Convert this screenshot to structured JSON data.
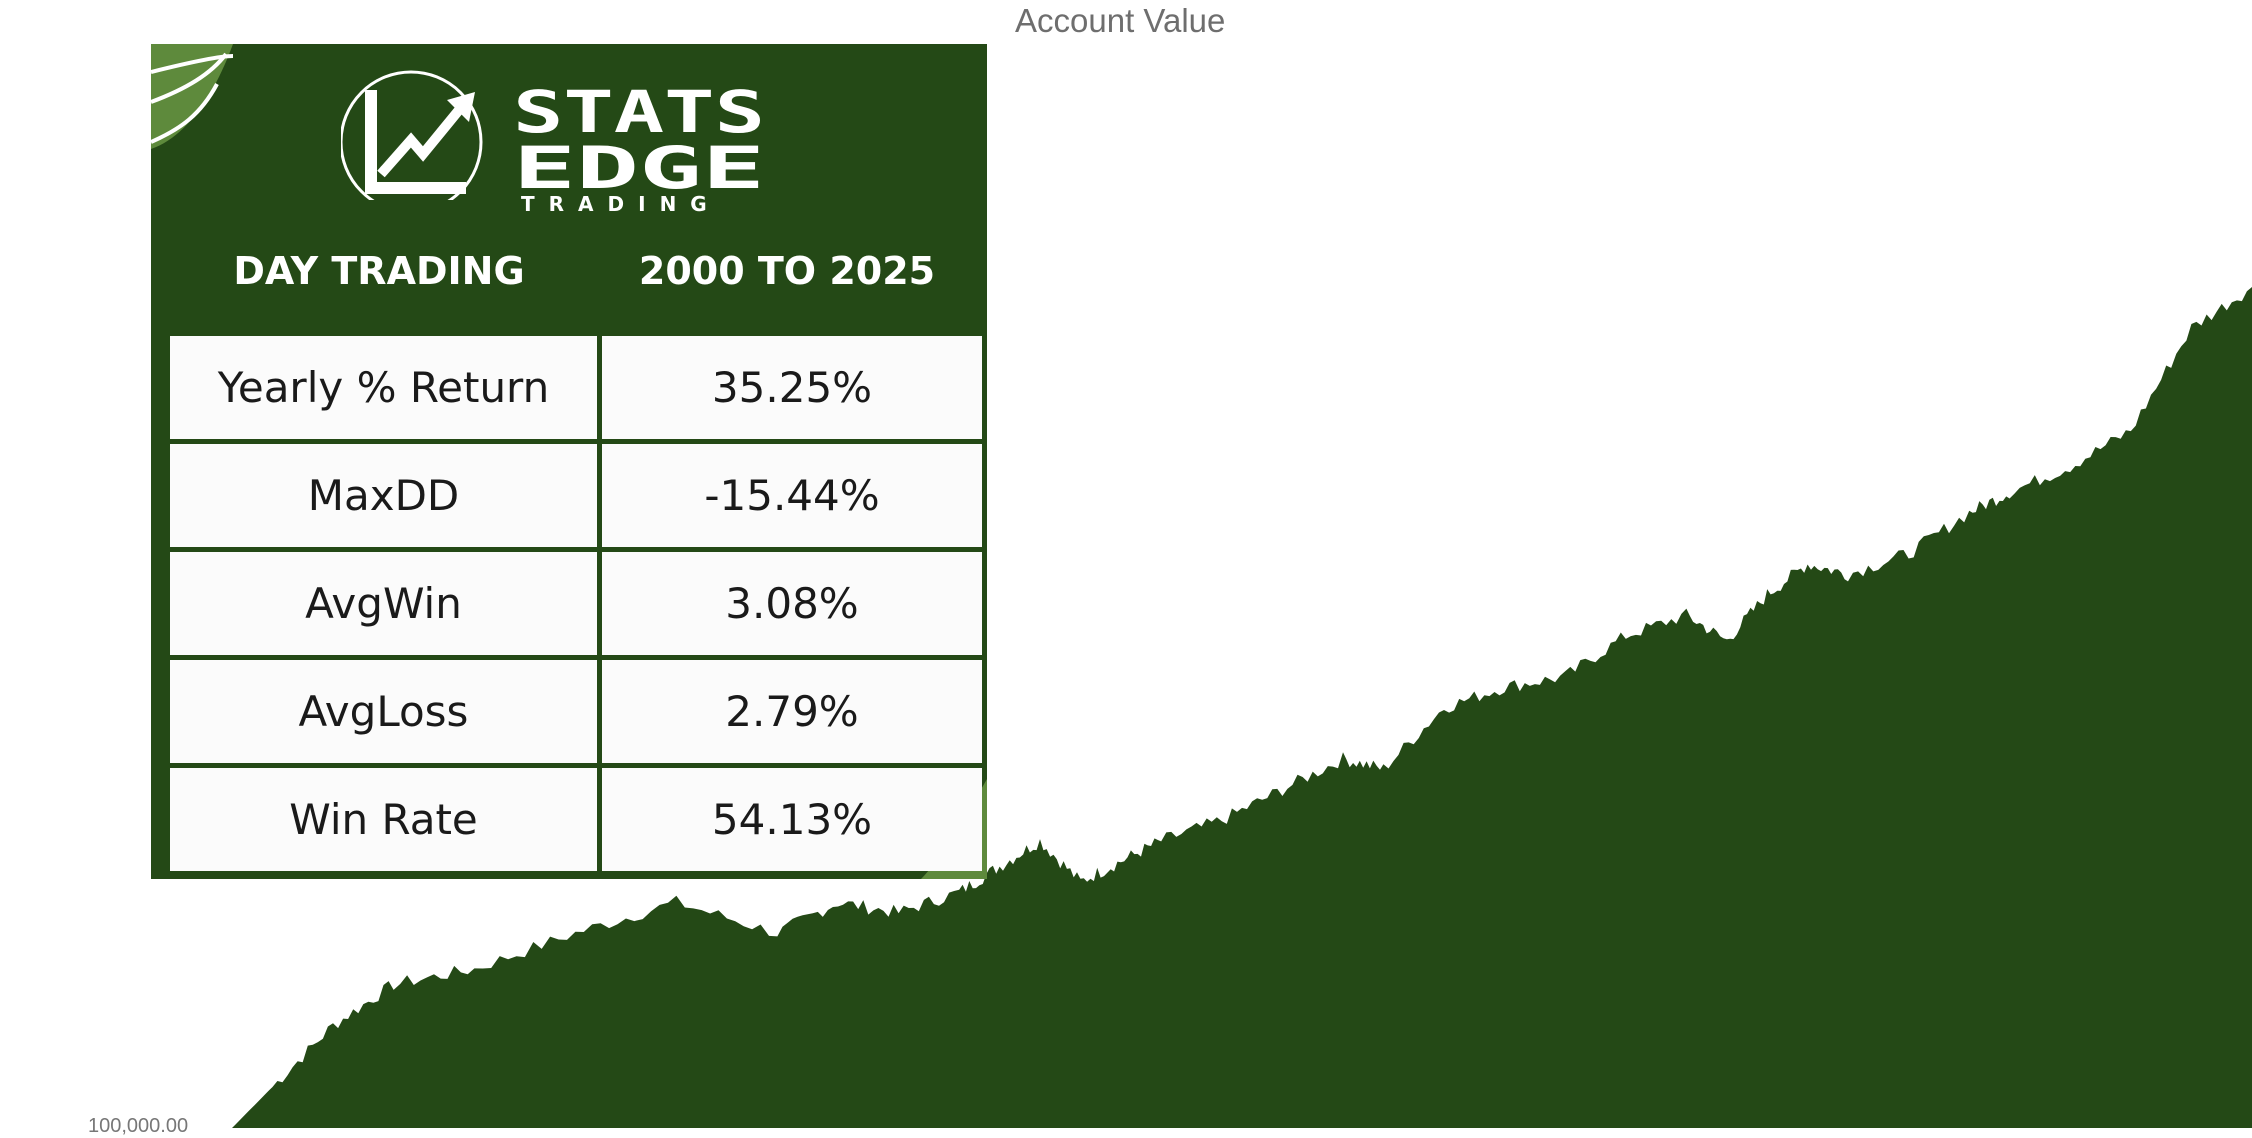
{
  "chart_data": {
    "type": "area",
    "title": "Account Value",
    "xlabel": "",
    "ylabel": "",
    "y_ticks": [
      "100,000.00"
    ],
    "ylim": [
      100000,
      1000000
    ],
    "grid": false,
    "legend": "none",
    "fill_color": "#244916",
    "x": [
      0,
      2,
      5,
      8,
      12,
      17,
      22,
      27,
      30,
      33,
      36,
      38,
      40,
      42,
      44,
      46,
      49,
      52,
      55,
      57,
      60,
      63,
      66,
      69,
      72,
      74,
      76,
      78,
      80,
      83,
      86,
      88,
      91,
      94,
      97,
      100
    ],
    "values": [
      100000,
      140000,
      200000,
      240000,
      255000,
      290000,
      320000,
      290000,
      320000,
      310000,
      330000,
      355000,
      380000,
      340000,
      360000,
      380000,
      400000,
      430000,
      460000,
      450000,
      510000,
      530000,
      540000,
      580000,
      600000,
      575000,
      620000,
      650000,
      640000,
      660000,
      700000,
      720000,
      745000,
      780000,
      880000,
      920000
    ]
  },
  "panel": {
    "brand": {
      "line1": "STATS",
      "line2": "EDGE",
      "sub": "TRADING"
    },
    "header_left": "DAY TRADING",
    "header_right": "2000 TO 2025",
    "rows": [
      {
        "label": "Yearly % Return",
        "value": "35.25%"
      },
      {
        "label": "MaxDD",
        "value": "-15.44%"
      },
      {
        "label": "AvgWin",
        "value": "3.08%"
      },
      {
        "label": "AvgLoss",
        "value": "2.79%"
      },
      {
        "label": "Win Rate",
        "value": "54.13%"
      }
    ]
  }
}
